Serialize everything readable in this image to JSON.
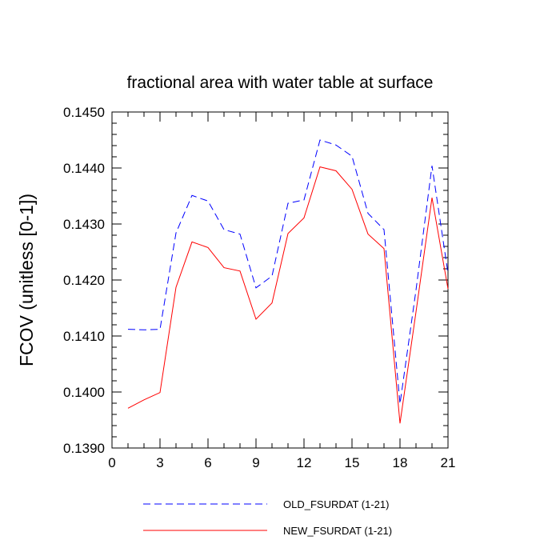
{
  "chart_data": {
    "type": "line",
    "title": "fractional area with water table at surface",
    "xlabel": "",
    "ylabel": "FCOV  (unitless [0-1])",
    "xlim": [
      0,
      21
    ],
    "ylim": [
      0.139,
      0.145
    ],
    "xticks": [
      0,
      3,
      6,
      9,
      12,
      15,
      18,
      21
    ],
    "xtick_labels": [
      "0",
      "3",
      "6",
      "9",
      "12",
      "15",
      "18",
      "21"
    ],
    "yticks": [
      0.139,
      0.14,
      0.141,
      0.142,
      0.143,
      0.144,
      0.145
    ],
    "ytick_labels": [
      "0.1390",
      "0.1400",
      "0.1410",
      "0.1420",
      "0.1430",
      "0.1440",
      "0.1450"
    ],
    "grid": false,
    "legend_position": "bottom",
    "x": [
      1,
      2,
      3,
      4,
      5,
      6,
      7,
      8,
      9,
      10,
      11,
      12,
      13,
      14,
      15,
      16,
      17,
      18,
      19,
      20,
      21
    ],
    "series": [
      {
        "name": "OLD_FSURDAT (1-21)",
        "color": "#0000ff",
        "style": "dashed",
        "values": [
          0.14112,
          0.14111,
          0.14112,
          0.14284,
          0.14351,
          0.14341,
          0.1429,
          0.14282,
          0.14186,
          0.14207,
          0.14337,
          0.14343,
          0.1445,
          0.14441,
          0.14421,
          0.14319,
          0.1429,
          0.13979,
          0.14182,
          0.14404,
          0.14212
        ]
      },
      {
        "name": "NEW_FSURDAT (1-21)",
        "color": "#ff0000",
        "style": "solid",
        "values": [
          0.13971,
          0.13986,
          0.13999,
          0.14187,
          0.14268,
          0.14258,
          0.14222,
          0.14216,
          0.1413,
          0.14159,
          0.14283,
          0.14311,
          0.14402,
          0.14395,
          0.14362,
          0.14282,
          0.14256,
          0.13944,
          0.14143,
          0.14347,
          0.14184
        ]
      }
    ]
  }
}
